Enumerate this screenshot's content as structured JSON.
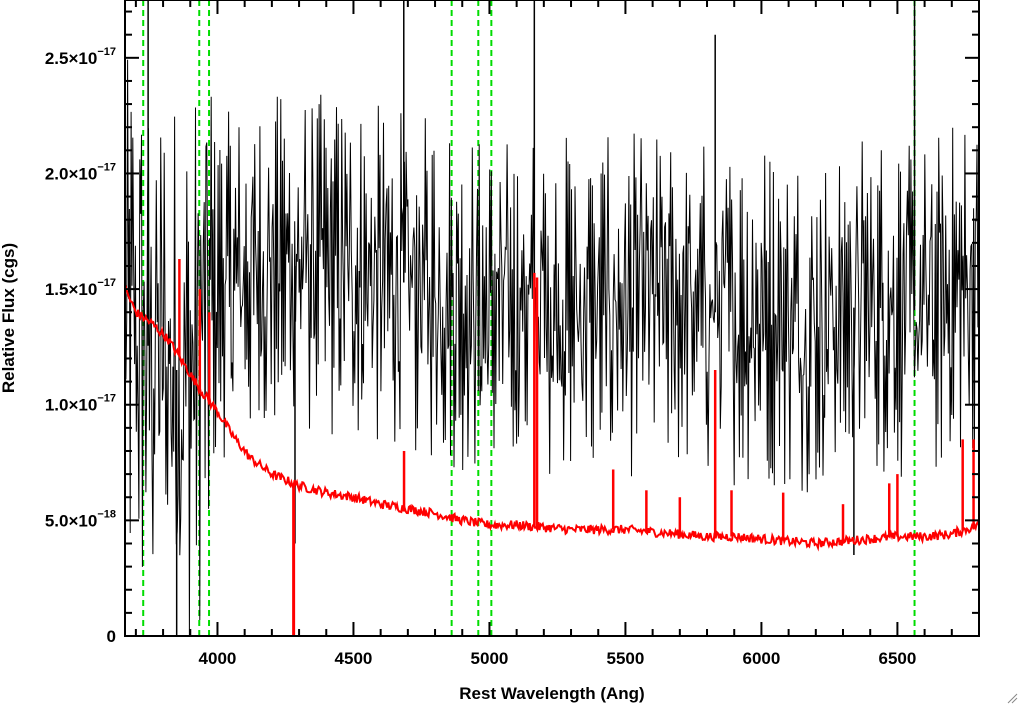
{
  "chart_data": {
    "type": "line",
    "xlabel": "Rest Wavelength (Ang)",
    "ylabel": "Relative Flux (cgs)",
    "xlim": [
      3660,
      6800
    ],
    "ylim": [
      0,
      2.75e-17
    ],
    "x_ticks": [
      {
        "value": 4000,
        "label": "4000"
      },
      {
        "value": 4500,
        "label": "4500"
      },
      {
        "value": 5000,
        "label": "5000"
      },
      {
        "value": 5500,
        "label": "5500"
      },
      {
        "value": 6000,
        "label": "6000"
      },
      {
        "value": 6500,
        "label": "6500"
      }
    ],
    "y_ticks": [
      {
        "value": 0,
        "mantissa": "0",
        "exponent": ""
      },
      {
        "value": 5e-18,
        "mantissa": "5.0×10",
        "exponent": "−18"
      },
      {
        "value": 1e-17,
        "mantissa": "1.0×10",
        "exponent": "−17"
      },
      {
        "value": 1.5e-17,
        "mantissa": "1.5×10",
        "exponent": "−17"
      },
      {
        "value": 2e-17,
        "mantissa": "2.0×10",
        "exponent": "−17"
      },
      {
        "value": 2.5e-17,
        "mantissa": "2.5×10",
        "exponent": "−17"
      }
    ],
    "x_minor_step": 100,
    "y_minor_step": 1e-18,
    "grid": false,
    "legend": "none",
    "reference_lines": {
      "color": "#00dd00",
      "style": "dashed",
      "x": [
        3727,
        3933,
        3969,
        4861,
        4959,
        5007,
        6563
      ]
    },
    "series": [
      {
        "color": "#000000",
        "style": "noisy spectrum",
        "x_range": [
          3660,
          6800
        ],
        "y_range_typical": [
          5e-18,
          2.4e-17
        ],
        "description_points": [
          [
            3700,
            1.3e-17
          ],
          [
            3800,
            1.2e-17
          ],
          [
            3900,
            1.1e-17
          ],
          [
            4000,
            1.5e-17
          ],
          [
            4200,
            1.6e-17
          ],
          [
            4400,
            1.6e-17
          ],
          [
            4600,
            1.55e-17
          ],
          [
            4800,
            1.5e-17
          ],
          [
            5000,
            1.4e-17
          ],
          [
            5200,
            1.45e-17
          ],
          [
            5400,
            1.4e-17
          ],
          [
            5600,
            1.45e-17
          ],
          [
            5800,
            1.4e-17
          ],
          [
            6000,
            1.4e-17
          ],
          [
            6200,
            1.35e-17
          ],
          [
            6400,
            1.45e-17
          ],
          [
            6600,
            1.4e-17
          ],
          [
            6800,
            1.55e-17
          ]
        ],
        "spikes": [
          [
            3745,
            3.2e-17
          ],
          [
            4685,
            2.8e-17
          ],
          [
            5165,
            2.8e-17
          ],
          [
            5830,
            2.6e-17
          ],
          [
            6563,
            3e-17
          ],
          [
            3850,
            -2e-18
          ],
          [
            4285,
            4e-18
          ],
          [
            6340,
            3.5e-18
          ]
        ]
      },
      {
        "color": "#ff0000",
        "style": "smooth model continuum",
        "x_range": [
          3660,
          6800
        ],
        "points": [
          [
            3660,
            1.5e-17
          ],
          [
            3700,
            1.4e-17
          ],
          [
            3760,
            1.35e-17
          ],
          [
            3820,
            1.28e-17
          ],
          [
            3880,
            1.17e-17
          ],
          [
            3940,
            1.06e-17
          ],
          [
            4000,
            9.7e-18
          ],
          [
            4060,
            8.6e-18
          ],
          [
            4120,
            7.7e-18
          ],
          [
            4200,
            7e-18
          ],
          [
            4300,
            6.5e-18
          ],
          [
            4400,
            6.2e-18
          ],
          [
            4500,
            6e-18
          ],
          [
            4600,
            5.7e-18
          ],
          [
            4700,
            5.5e-18
          ],
          [
            4800,
            5.3e-18
          ],
          [
            4900,
            5e-18
          ],
          [
            5000,
            4.8e-18
          ],
          [
            5100,
            4.8e-18
          ],
          [
            5200,
            4.7e-18
          ],
          [
            5300,
            4.6e-18
          ],
          [
            5400,
            4.6e-18
          ],
          [
            5500,
            4.6e-18
          ],
          [
            5600,
            4.5e-18
          ],
          [
            5700,
            4.4e-18
          ],
          [
            5800,
            4.3e-18
          ],
          [
            5900,
            4.3e-18
          ],
          [
            6000,
            4.2e-18
          ],
          [
            6100,
            4.1e-18
          ],
          [
            6200,
            4e-18
          ],
          [
            6300,
            4.1e-18
          ],
          [
            6400,
            4.2e-18
          ],
          [
            6500,
            4.3e-18
          ],
          [
            6600,
            4.3e-18
          ],
          [
            6700,
            4.4e-18
          ],
          [
            6800,
            4.8e-18
          ]
        ],
        "emission_lines": [
          [
            3860,
            1.63e-17
          ],
          [
            3935,
            1.5e-17
          ],
          [
            3970,
            1.4e-17
          ],
          [
            4686,
            8e-18
          ],
          [
            5165,
            1.57e-17
          ],
          [
            5175,
            1.55e-17
          ],
          [
            5455,
            7.2e-18
          ],
          [
            5577,
            6.3e-18
          ],
          [
            5700,
            6e-18
          ],
          [
            5830,
            1.15e-17
          ],
          [
            5890,
            6.3e-18
          ],
          [
            6080,
            6.2e-18
          ],
          [
            6300,
            5.7e-18
          ],
          [
            6470,
            6.6e-18
          ],
          [
            6500,
            7e-18
          ],
          [
            6740,
            8.5e-18
          ],
          [
            6780,
            8.5e-18
          ]
        ],
        "absorption_lines": [
          [
            4280,
            -1e-18
          ]
        ]
      }
    ]
  }
}
